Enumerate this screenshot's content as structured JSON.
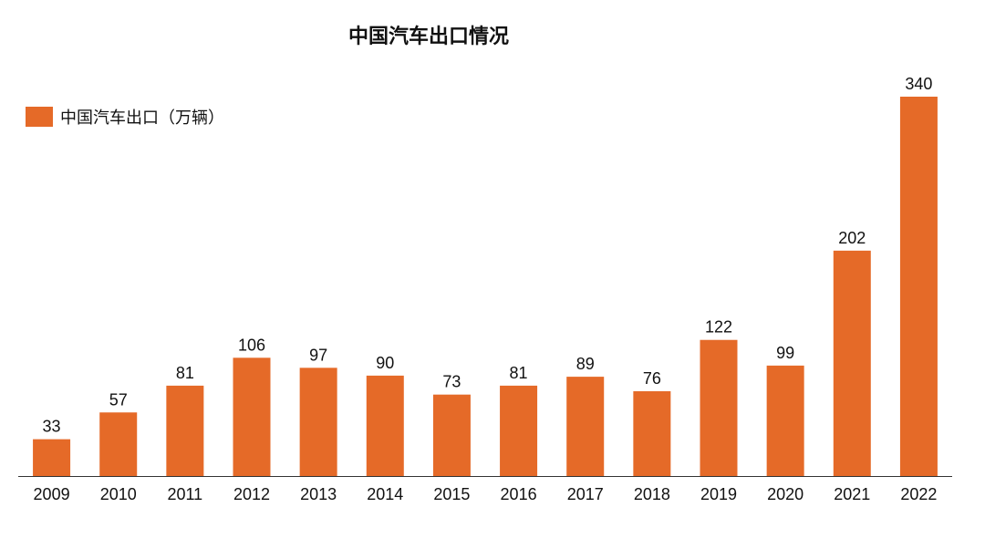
{
  "chart_data": {
    "type": "bar",
    "title": "中国汽车出口情况",
    "categories": [
      "2009",
      "2010",
      "2011",
      "2012",
      "2013",
      "2014",
      "2015",
      "2016",
      "2017",
      "2018",
      "2019",
      "2020",
      "2021",
      "2022"
    ],
    "series": [
      {
        "name": "中国汽车出口（万辆）",
        "values": [
          33,
          57,
          81,
          106,
          97,
          90,
          73,
          81,
          89,
          76,
          122,
          99,
          202,
          340
        ],
        "color": "#E56A28"
      }
    ],
    "xlabel": "",
    "ylabel": "",
    "ylim": [
      0,
      340
    ],
    "grid": false,
    "legend_position": "top-left"
  }
}
